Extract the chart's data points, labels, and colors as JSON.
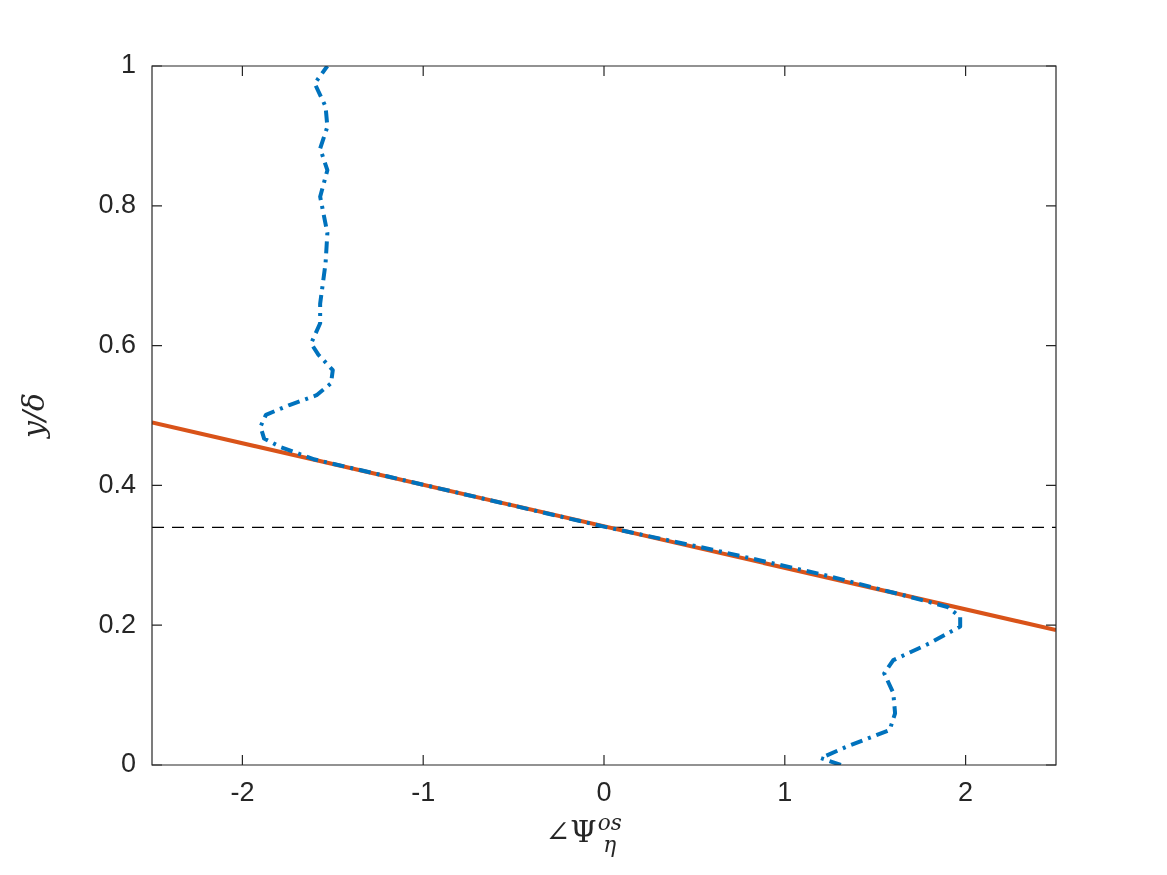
{
  "chart_data": {
    "type": "line",
    "xlabel": "∠Ψ$_{η}$$^{os}$",
    "ylabel": "y/δ",
    "xlim": [
      -2.5,
      2.5
    ],
    "xticks": [
      -2,
      -1,
      0,
      1,
      2
    ],
    "ylim": [
      0,
      1
    ],
    "yticks": [
      0,
      0.2,
      0.4,
      0.6,
      0.8,
      1
    ],
    "grid": false,
    "legend": false,
    "marker": "none",
    "series": [
      {
        "color": "#0072bd",
        "line_style": "dashed",
        "x": [
          1.31,
          1.2,
          1.34,
          1.58,
          1.61,
          1.6,
          1.55,
          1.6,
          1.8,
          1.97,
          1.97,
          1.9,
          1.7,
          1.2,
          0.6,
          0,
          -0.6,
          -1.2,
          -1.6,
          -1.79,
          -1.88,
          -1.9,
          -1.87,
          -1.74,
          -1.59,
          -1.51,
          -1.5,
          -1.58,
          -1.62,
          -1.57,
          -1.57,
          -1.54,
          -1.53,
          -1.57,
          -1.53,
          -1.57,
          -1.53,
          -1.54,
          -1.6,
          -1.53
        ],
        "values": [
          0,
          0.01,
          0.026,
          0.05,
          0.074,
          0.103,
          0.131,
          0.15,
          0.174,
          0.198,
          0.212,
          0.226,
          0.24,
          0.273,
          0.308,
          0.341,
          0.377,
          0.413,
          0.437,
          0.455,
          0.467,
          0.484,
          0.501,
          0.515,
          0.529,
          0.546,
          0.565,
          0.587,
          0.603,
          0.632,
          0.66,
          0.718,
          0.761,
          0.813,
          0.851,
          0.882,
          0.913,
          0.942,
          0.975,
          1
        ]
      },
      {
        "color": "#d95319",
        "line_style": "solid",
        "x": [
          -2.5,
          2.5
        ],
        "values": [
          0.49,
          0.193
        ]
      }
    ],
    "ref_lines": [
      {
        "axis": "y",
        "value": 0.34,
        "color": "#000000",
        "line_style": "dashed"
      }
    ]
  }
}
